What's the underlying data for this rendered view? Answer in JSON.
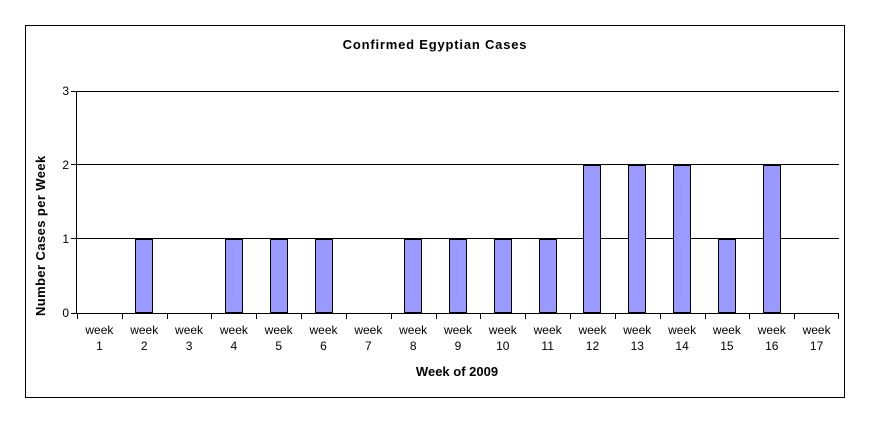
{
  "chart_data": {
    "type": "bar",
    "title": "Confirmed Egyptian Cases",
    "xlabel": "Week of 2009",
    "ylabel": "Number Cases per Week",
    "categories": [
      "week 1",
      "week 2",
      "week 3",
      "week 4",
      "week 5",
      "week 6",
      "week 7",
      "week 8",
      "week 9",
      "week 10",
      "week 11",
      "week 12",
      "week 13",
      "week 14",
      "week 15",
      "week 16",
      "week 17"
    ],
    "values": [
      0,
      1,
      0,
      1,
      1,
      1,
      0,
      1,
      1,
      1,
      1,
      2,
      2,
      2,
      1,
      2,
      0
    ],
    "y_ticks": [
      0,
      1,
      2,
      3
    ],
    "ylim": [
      0,
      3
    ],
    "grid": true,
    "legend": "none",
    "colors": {
      "bar_fill": "#9999FF",
      "bar_border": "#000000",
      "axis": "#000000",
      "text": "#000000",
      "background": "#FFFFFF"
    }
  }
}
